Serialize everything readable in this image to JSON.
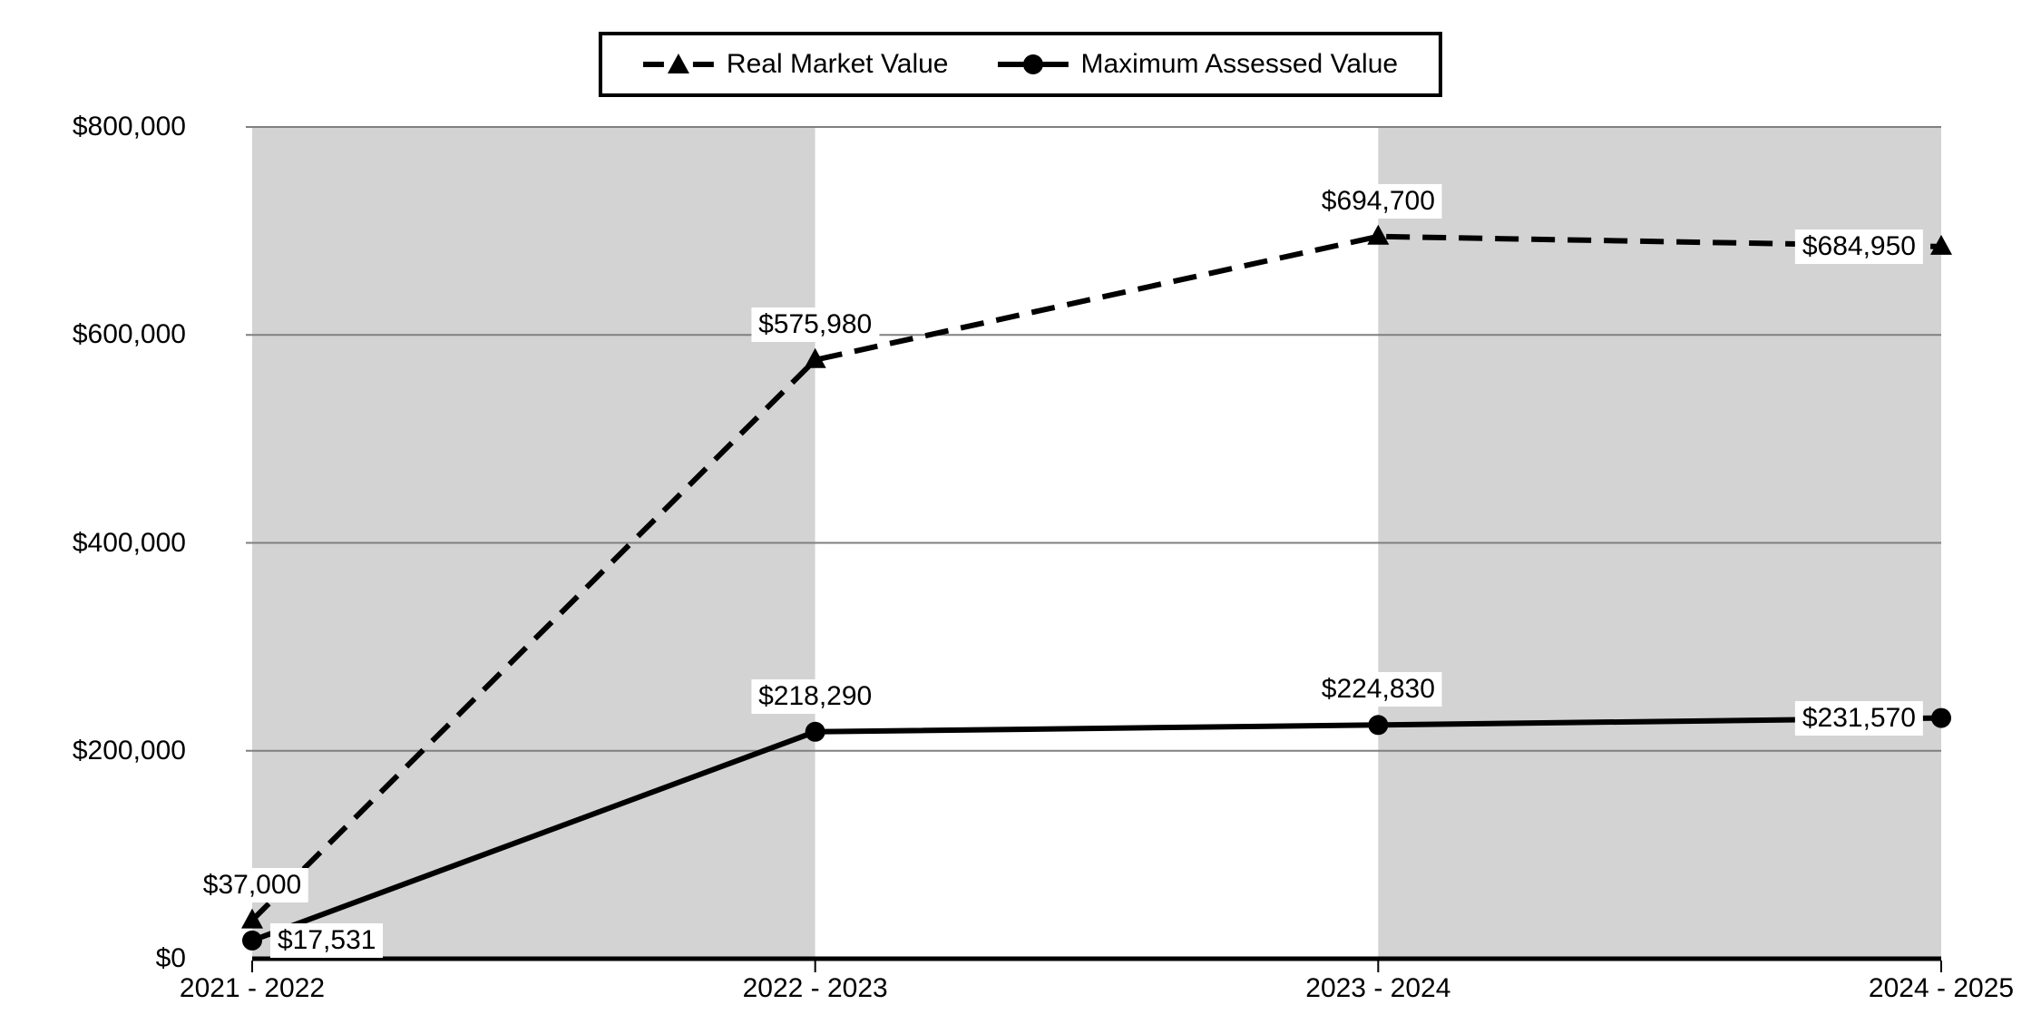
{
  "chart_data": {
    "type": "line",
    "title": "",
    "xlabel": "",
    "ylabel": "",
    "categories": [
      "2021 - 2022",
      "2022 - 2023",
      "2023 - 2024",
      "2024 - 2025"
    ],
    "series": [
      {
        "name": "Real Market Value",
        "values": [
          37000,
          575980,
          694700,
          684950
        ],
        "labels": [
          "$37,000",
          "$575,980",
          "$694,700",
          "$684,950"
        ],
        "label_placements": [
          "above",
          "above",
          "above",
          "left"
        ],
        "line_style": "dashed",
        "marker": "triangle",
        "color": "#000000"
      },
      {
        "name": "Maximum Assessed Value",
        "values": [
          17531,
          218290,
          224830,
          231570
        ],
        "labels": [
          "$17,531",
          "$218,290",
          "$224,830",
          "$231,570"
        ],
        "label_placements": [
          "right",
          "above",
          "above",
          "left"
        ],
        "line_style": "solid",
        "marker": "circle",
        "color": "#000000"
      }
    ],
    "ylim": [
      0,
      800000
    ],
    "ytick_values": [
      0,
      200000,
      400000,
      600000,
      800000
    ],
    "ytick_labels": [
      "$0",
      "$200,000",
      "$400,000",
      "$600,000",
      "$800,000"
    ],
    "grid": true,
    "legend_position": "top-center",
    "plot_bands": [
      {
        "from_category": 0,
        "to_category": 1,
        "color": "#d3d3d3"
      },
      {
        "from_category": 1,
        "to_category": 2,
        "color": "#ffffff"
      },
      {
        "from_category": 2,
        "to_category": 3,
        "color": "#d3d3d3"
      }
    ],
    "colors": {
      "background": "#ffffff",
      "band_gray": "#d3d3d3",
      "gridline": "#808080",
      "axis": "#000000",
      "series": "#000000",
      "label_background": "#ffffff",
      "text": "#000000"
    }
  }
}
